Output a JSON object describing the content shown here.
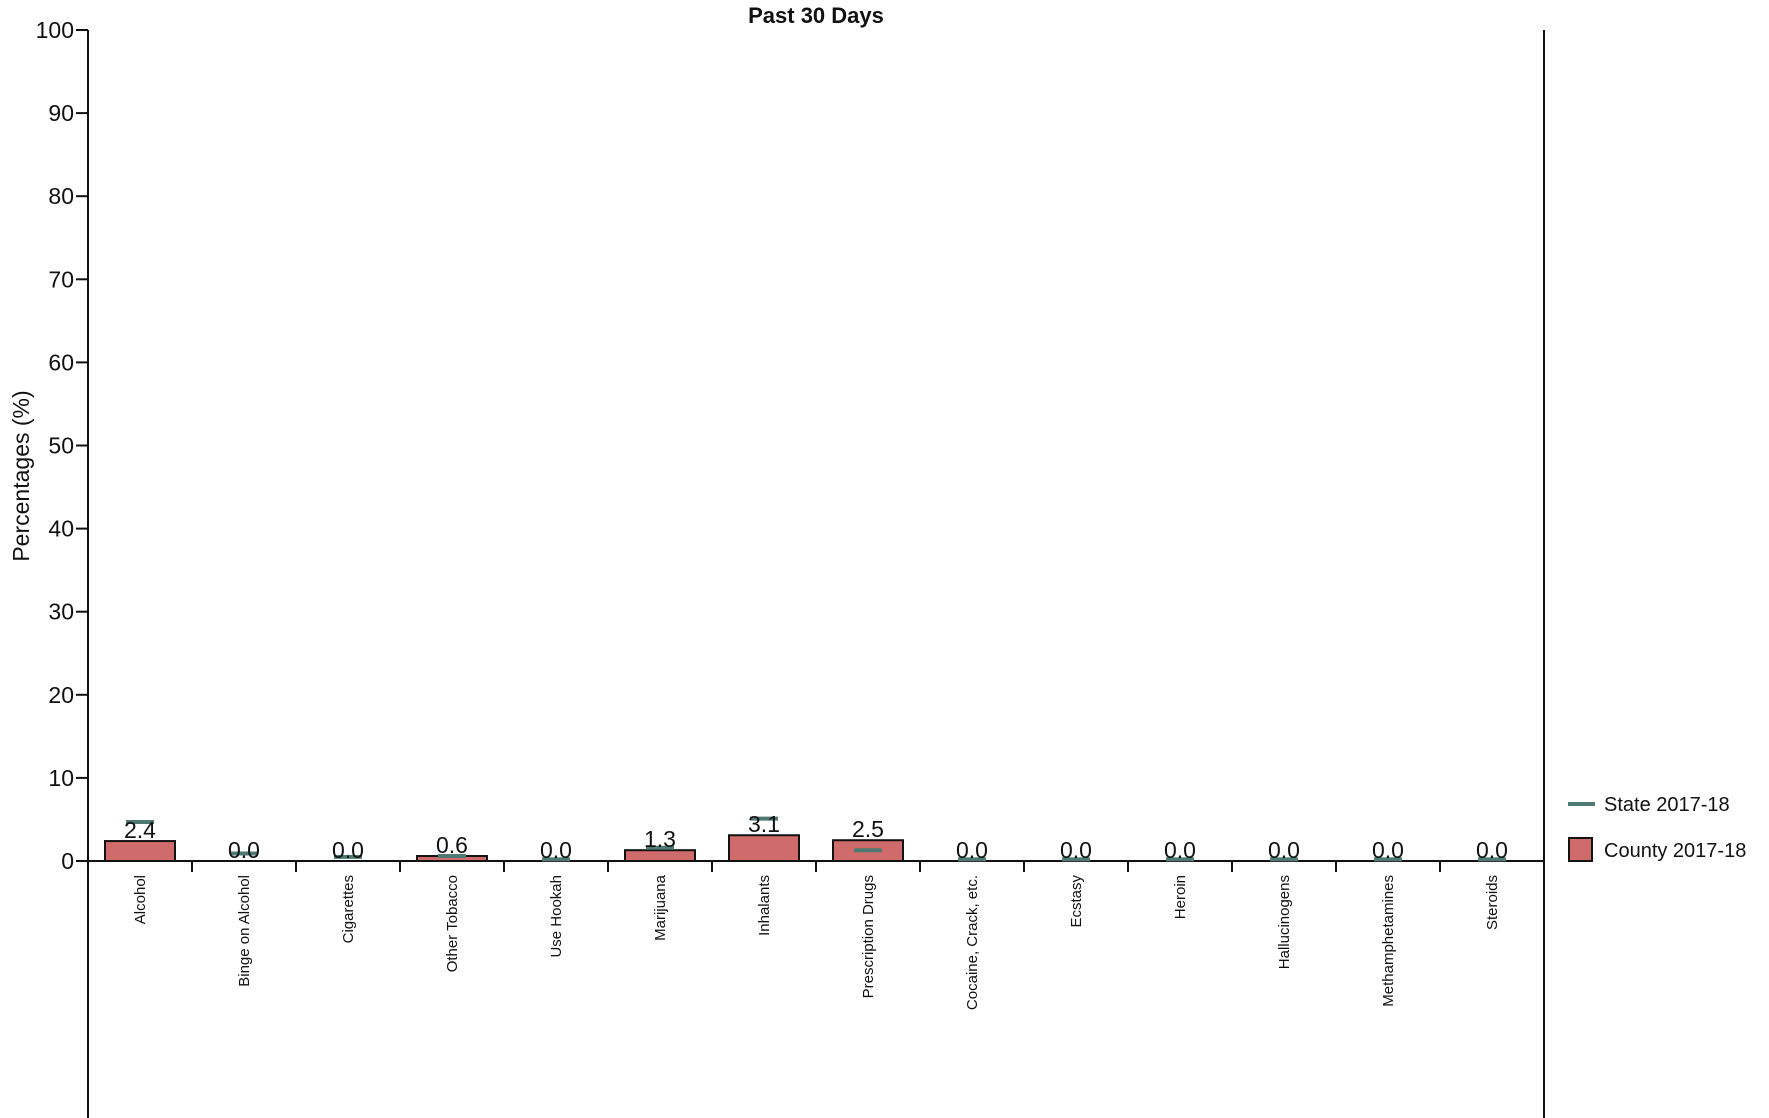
{
  "chart_data": {
    "type": "bar",
    "title": "Past 30 Days",
    "ylabel": "Percentages (%)",
    "xlabel": "",
    "ylim": [
      0,
      100
    ],
    "yticks": [
      0,
      10,
      20,
      30,
      40,
      50,
      60,
      70,
      80,
      90,
      100
    ],
    "categories": [
      "Alcohol",
      "Binge on Alcohol",
      "Cigarettes",
      "Other Tobacco",
      "Use Hookah",
      "Marijuana",
      "Inhalants",
      "Prescription Drugs",
      "Cocaine, Crack, etc.",
      "Ecstasy",
      "Heroin",
      "Hallucinogens",
      "Methamphetamines",
      "Steroids"
    ],
    "series": [
      {
        "name": "County 2017-18",
        "kind": "bar",
        "color": "#d06b6b",
        "values": [
          2.4,
          0.0,
          0.0,
          0.6,
          0.0,
          1.3,
          3.1,
          2.5,
          0.0,
          0.0,
          0.0,
          0.0,
          0.0,
          0.0
        ],
        "labels": [
          "2.4",
          "0.0",
          "0.0",
          "0.6",
          "0.0",
          "1.3",
          "3.1",
          "2.5",
          "0.0",
          "0.0",
          "0.0",
          "0.0",
          "0.0",
          "0.0"
        ]
      },
      {
        "name": "State 2017-18",
        "kind": "marker",
        "color": "#4f7a73",
        "values": [
          4.7,
          0.9,
          0.5,
          0.6,
          0.2,
          1.6,
          5.1,
          1.3,
          0.2,
          0.2,
          0.2,
          0.2,
          0.2,
          0.2
        ]
      }
    ],
    "grid": false,
    "legend": "right"
  }
}
